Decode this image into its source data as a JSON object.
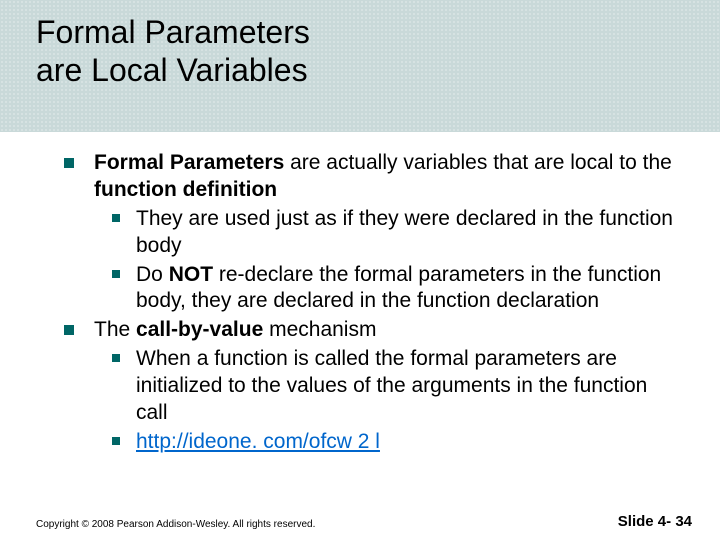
{
  "styling": {
    "slide_width": 720,
    "slide_height": 540,
    "title_band_height": 132,
    "title_band_bg": "#c9d9d9",
    "title_band_dot_color": "#ffffff",
    "title_band_dot_spacing": 4,
    "title_fontsize": 32,
    "title_color": "#000000",
    "body_fontsize": 21,
    "body_color": "#000000",
    "bullet_color": "#006666",
    "bullet_size_lvl1": 10,
    "bullet_size_lvl2": 8,
    "link_color": "#0066cc",
    "footer_fontsize": 10,
    "slidenum_fontsize": 15,
    "background_color": "#ffffff"
  },
  "title": {
    "line1": "Formal Parameters",
    "line2": "are Local Variables"
  },
  "body": {
    "p1_a": "Formal Parameters",
    "p1_b": " are actually variables that are local to the ",
    "p1_c": "function definition",
    "p1_s1": "They are used just as if they were declared in the function body",
    "p1_s2_a": "Do ",
    "p1_s2_b": "NOT",
    "p1_s2_c": " re-declare the formal parameters in the function body, they are declared in the function declaration",
    "p2_a": "The ",
    "p2_b": "call-by-value",
    "p2_c": " mechanism",
    "p2_s1": "When a function is called the formal parameters are initialized to the values of the arguments in the function call",
    "p2_s2_link": "http://ideone. com/ofcw 2 l"
  },
  "footer": {
    "copyright": "Copyright © 2008 Pearson Addison-Wesley. All rights reserved.",
    "slidenum": "Slide 4- 34"
  }
}
